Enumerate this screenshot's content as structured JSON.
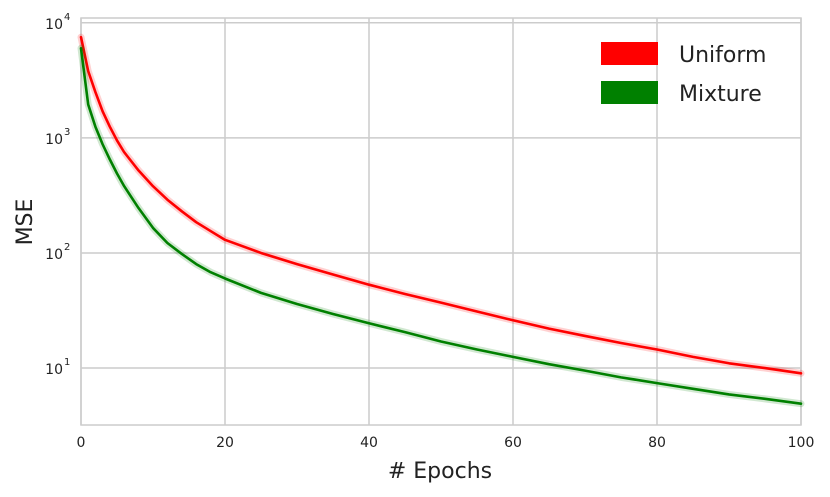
{
  "chart_data": {
    "type": "line",
    "xlabel": "# Epochs",
    "ylabel": "MSE",
    "xlim": [
      0,
      100
    ],
    "ylim": [
      3.2,
      11000
    ],
    "yscale": "log",
    "grid": true,
    "legend": "top-right",
    "xticks": [
      {
        "value": 0,
        "label": "0"
      },
      {
        "value": 20,
        "label": "20"
      },
      {
        "value": 40,
        "label": "40"
      },
      {
        "value": 60,
        "label": "60"
      },
      {
        "value": 80,
        "label": "80"
      },
      {
        "value": 100,
        "label": "100"
      }
    ],
    "yticks": [
      {
        "value": 10,
        "base": "10",
        "exp": "1"
      },
      {
        "value": 100,
        "base": "10",
        "exp": "2"
      },
      {
        "value": 1000,
        "base": "10",
        "exp": "3"
      },
      {
        "value": 10000,
        "base": "10",
        "exp": "4"
      }
    ],
    "x": [
      0,
      1,
      2,
      3,
      4,
      5,
      6,
      8,
      10,
      12,
      14,
      16,
      18,
      20,
      25,
      30,
      35,
      40,
      45,
      50,
      55,
      60,
      65,
      70,
      75,
      80,
      85,
      90,
      95,
      100
    ],
    "series": [
      {
        "name": "Uniform",
        "color": "#ff0000",
        "values": [
          7500,
          3800,
          2500,
          1700,
          1250,
          950,
          750,
          520,
          380,
          290,
          230,
          185,
          155,
          130,
          100,
          80,
          65,
          53,
          44,
          37,
          31,
          26,
          22,
          19,
          16.5,
          14.5,
          12.5,
          11,
          10,
          9
        ]
      },
      {
        "name": "Mixture",
        "color": "#008000",
        "values": [
          6000,
          1950,
          1250,
          880,
          650,
          490,
          380,
          245,
          165,
          122,
          98,
          80,
          68,
          60,
          45,
          36,
          29.5,
          24.5,
          20.5,
          17,
          14.5,
          12.5,
          10.8,
          9.5,
          8.3,
          7.4,
          6.6,
          5.9,
          5.4,
          4.9
        ]
      }
    ]
  }
}
